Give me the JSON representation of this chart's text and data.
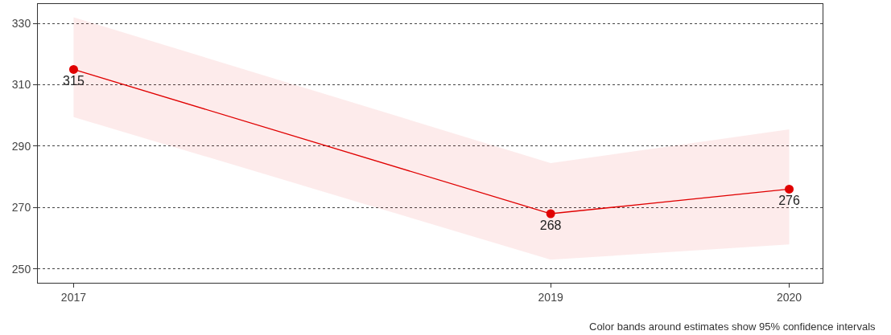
{
  "chart_data": {
    "type": "line",
    "x": [
      2017,
      2019,
      2020
    ],
    "series": [
      {
        "color": "#e00000",
        "values": [
          315,
          268,
          276
        ],
        "lower": [
          299.5,
          253,
          258
        ],
        "upper": [
          332,
          284.5,
          295.5
        ]
      }
    ],
    "data_labels": true,
    "marker": "circle",
    "grid": "y",
    "xlim": [
      2016.85,
      2020.14
    ],
    "xticks": [
      2017,
      2019,
      2020
    ],
    "ylim": [
      245.5,
      336.3
    ],
    "yticks": [
      250,
      270,
      290,
      310,
      330
    ],
    "annotations": [
      "Color bands around estimates show 95% confidence intervals"
    ]
  }
}
